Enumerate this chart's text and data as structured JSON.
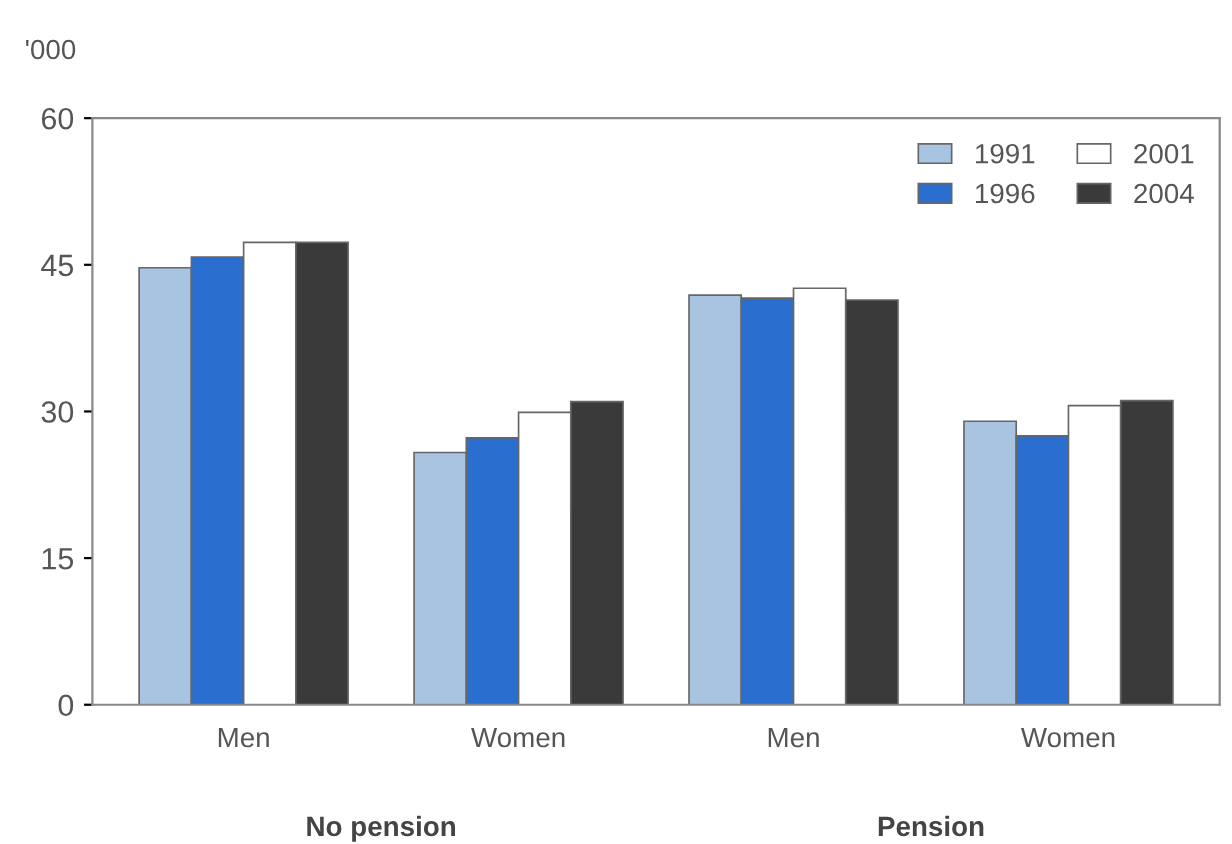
{
  "chart_data": {
    "type": "bar",
    "ylabel": "'000",
    "categories": [
      "Men",
      "Women",
      "Men",
      "Women"
    ],
    "series": [
      {
        "name": "1991",
        "color": "#a9c4e0",
        "values": [
          44.7,
          25.8,
          41.9,
          29.0
        ]
      },
      {
        "name": "1996",
        "color": "#2a6fcf",
        "values": [
          45.8,
          27.3,
          41.6,
          27.5
        ]
      },
      {
        "name": "2001",
        "color": "#ffffff",
        "values": [
          47.3,
          29.9,
          42.6,
          30.6
        ]
      },
      {
        "name": "2004",
        "color": "#3a3a3a",
        "values": [
          47.3,
          31.0,
          41.4,
          31.1
        ]
      }
    ],
    "ylim": [
      0,
      60
    ],
    "yticks": [
      0,
      15,
      30,
      45,
      60
    ],
    "grid": false,
    "legend": "top right",
    "annotations": [
      "No pension",
      "Pension"
    ]
  }
}
